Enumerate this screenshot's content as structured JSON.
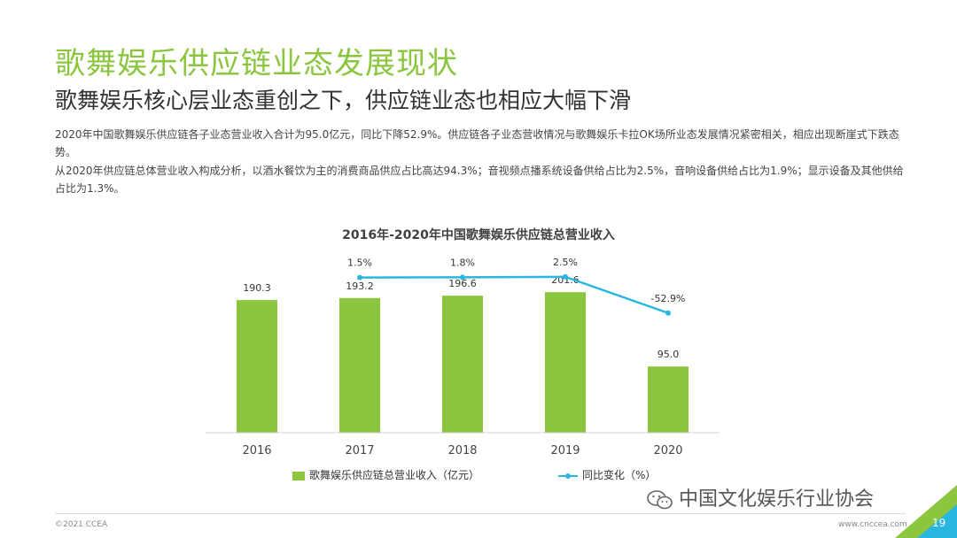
{
  "header": {
    "title": "歌舞娱乐供应链业态发展现状",
    "subtitle": "歌舞娱乐核心层业态重创之下，供应链业态也相应大幅下滑"
  },
  "body": {
    "para1": "2020年中国歌舞娱乐供应链各子业态营业收入合计为95.0亿元，同比下降52.9%。供应链各子业态营收情况与歌舞娱乐卡拉OK场所业态发展情况紧密相关，相应出现断崖式下跌态势。",
    "para2": "从2020年供应链总体营业收入构成分析，以酒水餐饮为主的消费商品供应占比高达94.3%；音视频点播系统设备供给占比为2.5%，音响设备供给占比为1.9%；显示设备及其他供给占比为1.3%。"
  },
  "chart_data": {
    "type": "bar",
    "title": "2016年-2020年中国歌舞娱乐供应链总营业收入",
    "categories": [
      "2016",
      "2017",
      "2018",
      "2019",
      "2020"
    ],
    "series": [
      {
        "name": "歌舞娱乐供应链总营业收入（亿元）",
        "type": "bar",
        "values": [
          190.3,
          193.2,
          196.6,
          201.6,
          95.0
        ],
        "labels": [
          "190.3",
          "193.2",
          "196.6",
          "201.6",
          "95.0"
        ],
        "color": "#8cc63f"
      },
      {
        "name": "同比变化（%）",
        "type": "line",
        "values": [
          null,
          1.5,
          1.8,
          2.5,
          -52.9
        ],
        "labels": [
          "",
          "1.5%",
          "1.8%",
          "2.5%",
          "-52.9%"
        ],
        "color": "#29b6e0"
      }
    ],
    "bar_max": 260,
    "line_range": [
      -60,
      5
    ],
    "grid": false,
    "legend_position": "bottom"
  },
  "watermark": {
    "text": "中国文化娱乐行业协会"
  },
  "footer": {
    "copyright": "©2021 CCEA",
    "url": "www.cnccea.com",
    "page": "19"
  },
  "colors": {
    "accent": "#8cc63f",
    "line": "#29b6e0"
  }
}
